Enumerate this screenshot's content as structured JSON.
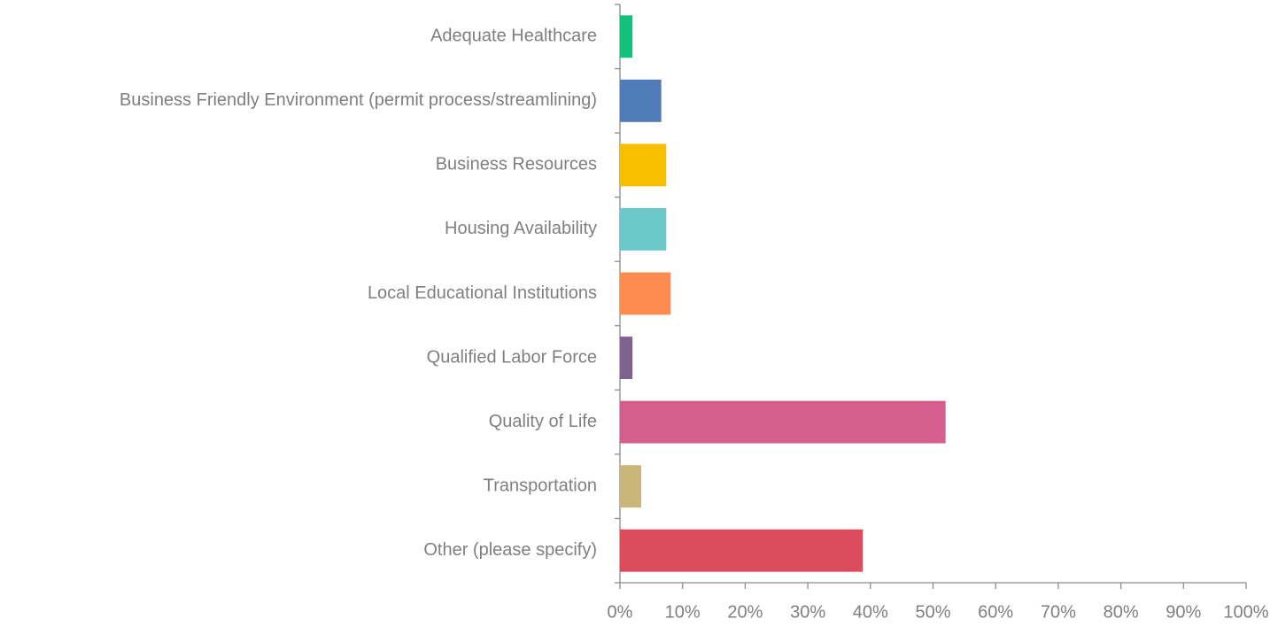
{
  "chart_data": {
    "type": "bar",
    "orientation": "horizontal",
    "categories": [
      "Adequate Healthcare",
      "Business Friendly Environment (permit process/streamlining)",
      "Business Resources",
      "Housing Availability",
      "Local Educational Institutions",
      "Qualified Labor Force",
      "Quality of Life",
      "Transportation",
      "Other (please specify)"
    ],
    "values": [
      2,
      6.6,
      7.4,
      7.4,
      8.1,
      2,
      52,
      3.4,
      38.8
    ],
    "colors": [
      "#14c17a",
      "#4f7cb8",
      "#f8bf00",
      "#6cc9cb",
      "#fe8c50",
      "#7e6290",
      "#d45f8f",
      "#c9b679",
      "#db4d5b"
    ],
    "xlim": [
      0,
      100
    ],
    "xticks": [
      {
        "value": 0,
        "label": "0%"
      },
      {
        "value": 10,
        "label": "10%"
      },
      {
        "value": 20,
        "label": "20%"
      },
      {
        "value": 30,
        "label": "30%"
      },
      {
        "value": 40,
        "label": "40%"
      },
      {
        "value": 50,
        "label": "50%"
      },
      {
        "value": 60,
        "label": "60%"
      },
      {
        "value": 70,
        "label": "70%"
      },
      {
        "value": 80,
        "label": "80%"
      },
      {
        "value": 90,
        "label": "90%"
      },
      {
        "value": 100,
        "label": "100%"
      }
    ],
    "grid": false
  }
}
